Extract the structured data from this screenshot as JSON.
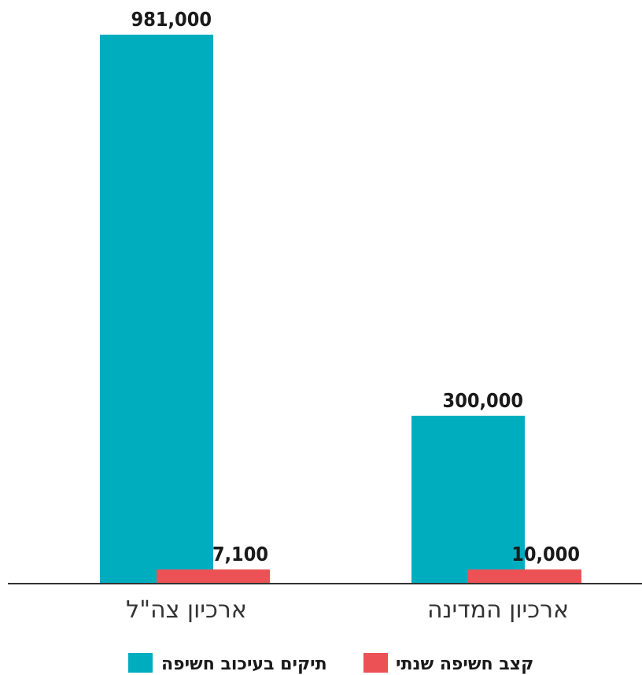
{
  "chart_data": {
    "type": "bar",
    "categories": [
      "ארכיון צה\"ל",
      "ארכיון המדינה"
    ],
    "series": [
      {
        "name": "תיקים בעיכוב חשיפה",
        "values": [
          981000,
          300000
        ],
        "labels": [
          "981,000",
          "300,000"
        ],
        "color": "#00adbf"
      },
      {
        "name": "קצב חשיפה שנתי",
        "values": [
          7100,
          10000
        ],
        "labels": [
          "7,100",
          "10,000"
        ],
        "color": "#ec5255"
      }
    ],
    "ylim": [
      0,
      981000
    ],
    "grid": false,
    "legend_position": "bottom"
  },
  "colors": {
    "axis": "#333333",
    "background": "#ffffff"
  }
}
